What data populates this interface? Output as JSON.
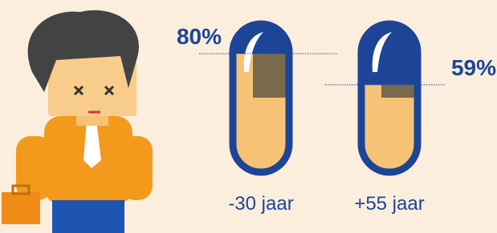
{
  "chart_data": {
    "type": "pill",
    "categories": [
      "-30 jaar",
      "+55 jaar"
    ],
    "values": [
      80,
      59
    ],
    "value_labels": [
      "80%",
      "59%"
    ],
    "ylim": [
      0,
      100
    ],
    "color": "#1d4597",
    "fill_color": "#f6c275"
  }
}
